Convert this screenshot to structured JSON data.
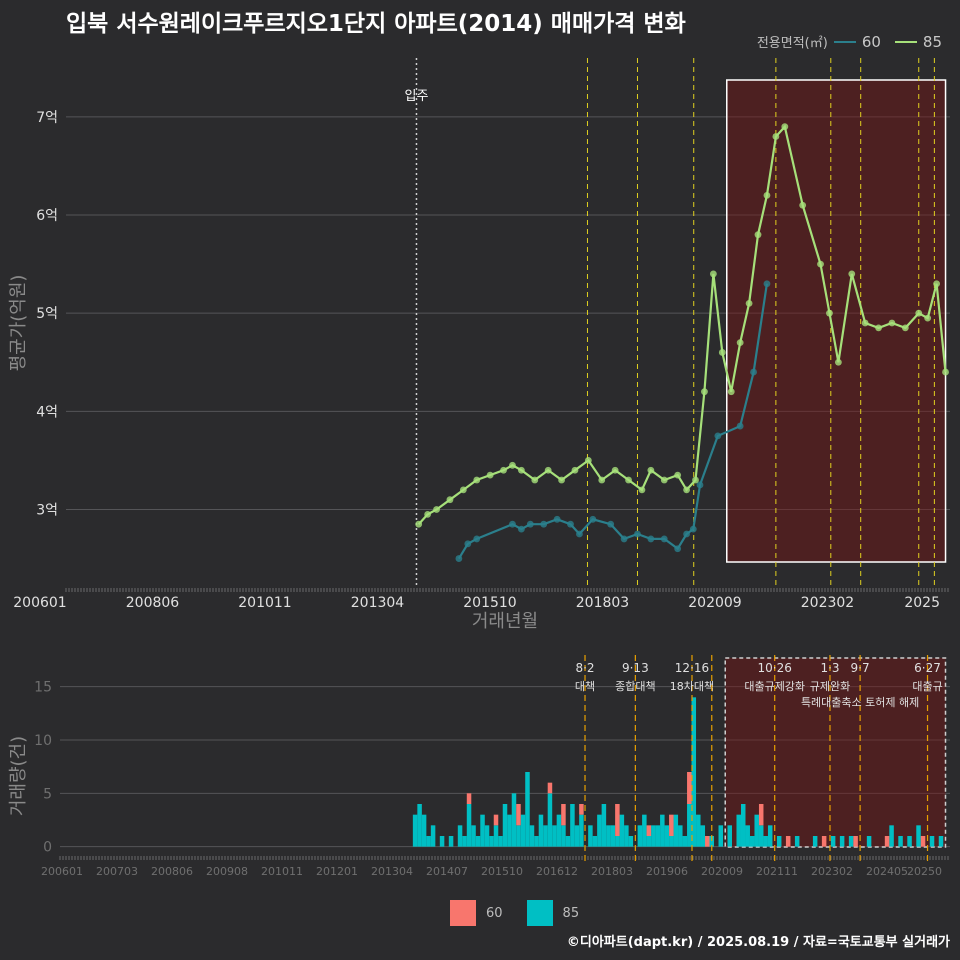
{
  "title": "입북 서수원레이크푸르지오1단지 아파트(2014) 매매가격 변화",
  "footer": "©디아파트(dapt.kr) / 2025.08.19 / 자료=국토교통부 실거래가",
  "legend_top": {
    "title": "전용면적(㎡)",
    "items": [
      {
        "label": "60",
        "color": "#2b7f8c"
      },
      {
        "label": "85",
        "color": "#a6e07a"
      }
    ]
  },
  "legend_bottom": {
    "items": [
      {
        "label": "60",
        "color": "#f8766d"
      },
      {
        "label": "85",
        "color": "#00bfc4"
      }
    ]
  },
  "chart_data": [
    {
      "type": "line",
      "title": "입북 서수원레이크푸르지오1단지 아파트(2014) 매매가격 변화",
      "xlabel": "거래년월",
      "ylabel": "평균가(억원)",
      "x_ticks": [
        "200601",
        "200806",
        "201011",
        "201304",
        "201510",
        "201803",
        "202009",
        "202302",
        "2025"
      ],
      "y_ticks": [
        "3억",
        "4억",
        "5억",
        "6억",
        "7억"
      ],
      "y_tick_values": [
        3,
        4,
        5,
        6,
        7
      ],
      "ylim": [
        2.2,
        7.6
      ],
      "xlim": [
        2005.9,
        2025.7
      ],
      "event_lines": [
        {
          "label": "입주",
          "x": 2013.75
        },
        {
          "x": 2017.58
        },
        {
          "x": 2018.7
        },
        {
          "x": 2019.96
        },
        {
          "x": 2021.8
        },
        {
          "x": 2023.03
        },
        {
          "x": 2023.7
        },
        {
          "x": 2025.0
        },
        {
          "x": 2025.35
        }
      ],
      "highlight": {
        "x_from": 2020.7,
        "x_to": 2025.6
      },
      "series": [
        {
          "name": "60",
          "color": "#2b7f8c",
          "x": [
            2014.7,
            2014.9,
            2015.1,
            2015.9,
            2016.1,
            2016.3,
            2016.6,
            2016.9,
            2017.2,
            2017.4,
            2017.7,
            2018.1,
            2018.4,
            2018.7,
            2019.0,
            2019.3,
            2019.6,
            2019.8,
            2019.95,
            2020.1,
            2020.5,
            2021.0,
            2021.3,
            2021.6
          ],
          "values": [
            2.5,
            2.65,
            2.7,
            2.85,
            2.8,
            2.85,
            2.85,
            2.9,
            2.85,
            2.75,
            2.9,
            2.85,
            2.7,
            2.75,
            2.7,
            2.7,
            2.6,
            2.75,
            2.8,
            3.25,
            3.75,
            3.85,
            4.4,
            5.3
          ]
        },
        {
          "name": "85",
          "color": "#a6e07a",
          "x": [
            2013.8,
            2014.0,
            2014.2,
            2014.5,
            2014.8,
            2015.1,
            2015.4,
            2015.7,
            2015.9,
            2016.1,
            2016.4,
            2016.7,
            2017.0,
            2017.3,
            2017.6,
            2017.9,
            2018.2,
            2018.5,
            2018.8,
            2019.0,
            2019.3,
            2019.6,
            2019.8,
            2020.0,
            2020.2,
            2020.4,
            2020.6,
            2020.8,
            2021.0,
            2021.2,
            2021.4,
            2021.6,
            2021.8,
            2022.0,
            2022.4,
            2022.8,
            2023.0,
            2023.2,
            2023.5,
            2023.8,
            2024.1,
            2024.4,
            2024.7,
            2025.0,
            2025.2,
            2025.4,
            2025.6
          ],
          "values": [
            2.85,
            2.95,
            3.0,
            3.1,
            3.2,
            3.3,
            3.35,
            3.4,
            3.45,
            3.4,
            3.3,
            3.4,
            3.3,
            3.4,
            3.5,
            3.3,
            3.4,
            3.3,
            3.2,
            3.4,
            3.3,
            3.35,
            3.2,
            3.3,
            4.2,
            5.4,
            4.6,
            4.2,
            4.7,
            5.1,
            5.8,
            6.2,
            6.8,
            6.9,
            6.1,
            5.5,
            5.0,
            4.5,
            5.4,
            4.9,
            4.85,
            4.9,
            4.85,
            5.0,
            4.95,
            5.3,
            4.4
          ]
        }
      ]
    },
    {
      "type": "bar",
      "xlabel": "",
      "ylabel": "거래량(건)",
      "x_ticks": [
        "200601",
        "200703",
        "200806",
        "200908",
        "201011",
        "201201",
        "201304",
        "201407",
        "201510",
        "201612",
        "201803",
        "201906",
        "202009",
        "202111",
        "202302",
        "202405",
        "20250"
      ],
      "y_ticks": [
        "0",
        "5",
        "10",
        "15"
      ],
      "y_tick_values": [
        0,
        5,
        10,
        15
      ],
      "ylim": [
        -0.5,
        17.5
      ],
      "xlim": [
        2005.9,
        2025.7
      ],
      "highlight": {
        "x_from": 2020.7,
        "x_to": 2025.6
      },
      "event_lines": [
        {
          "x": 2017.58,
          "date": "8·2",
          "label": "대책"
        },
        {
          "x": 2018.7,
          "date": "9·13",
          "label": "종합대책"
        },
        {
          "x": 2019.96,
          "date": "12·16",
          "label": "18차대책"
        },
        {
          "x": 2020.4,
          "date": "",
          "label": ""
        },
        {
          "x": 2021.8,
          "date": "10·26",
          "label": "대출규제강화"
        },
        {
          "x": 2023.03,
          "date": "1·3",
          "label": "규제완화"
        },
        {
          "x": 2023.7,
          "date": "9·7",
          "label": "특례대출축소 토허제 해제"
        },
        {
          "x": 2025.2,
          "date": "6·27",
          "label": "대출규"
        }
      ],
      "series": [
        {
          "name": "60",
          "color": "#f8766d",
          "x": [
            2015.0,
            2015.6,
            2016.1,
            2016.8,
            2017.1,
            2017.5,
            2018.3,
            2019.0,
            2019.5,
            2019.9,
            2020.3,
            2021.5,
            2022.1,
            2022.9,
            2023.6,
            2024.3,
            2025.1
          ],
          "values": [
            1,
            1,
            2,
            1,
            2,
            1,
            3,
            1,
            2,
            3,
            1,
            2,
            1,
            1,
            1,
            1,
            1
          ]
        },
        {
          "name": "85",
          "color": "#00bfc4",
          "x": [
            2013.8,
            2013.9,
            2014.0,
            2014.1,
            2014.2,
            2014.4,
            2014.6,
            2014.8,
            2014.9,
            2015.0,
            2015.1,
            2015.2,
            2015.3,
            2015.4,
            2015.5,
            2015.6,
            2015.7,
            2015.8,
            2015.9,
            2016.0,
            2016.1,
            2016.2,
            2016.3,
            2016.4,
            2016.5,
            2016.6,
            2016.7,
            2016.8,
            2016.9,
            2017.0,
            2017.1,
            2017.2,
            2017.3,
            2017.4,
            2017.5,
            2017.7,
            2017.8,
            2017.9,
            2018.0,
            2018.1,
            2018.2,
            2018.3,
            2018.4,
            2018.5,
            2018.6,
            2018.8,
            2018.9,
            2019.0,
            2019.1,
            2019.2,
            2019.3,
            2019.4,
            2019.5,
            2019.6,
            2019.7,
            2019.8,
            2019.9,
            2020.0,
            2020.1,
            2020.2,
            2020.4,
            2020.6,
            2020.8,
            2021.0,
            2021.1,
            2021.2,
            2021.3,
            2021.4,
            2021.5,
            2021.6,
            2021.7,
            2021.9,
            2022.3,
            2022.7,
            2023.1,
            2023.3,
            2023.5,
            2023.9,
            2024.4,
            2024.6,
            2024.8,
            2025.0,
            2025.3,
            2025.5
          ],
          "values": [
            3,
            4,
            3,
            1,
            2,
            1,
            1,
            2,
            1,
            4,
            2,
            1,
            3,
            2,
            1,
            2,
            1,
            4,
            3,
            5,
            2,
            3,
            7,
            2,
            1,
            3,
            2,
            5,
            2,
            3,
            2,
            1,
            4,
            2,
            3,
            2,
            1,
            3,
            4,
            2,
            2,
            1,
            3,
            2,
            1,
            2,
            3,
            1,
            2,
            2,
            3,
            2,
            1,
            3,
            2,
            1,
            4,
            14,
            3,
            2,
            1,
            2,
            2,
            3,
            4,
            2,
            1,
            3,
            2,
            1,
            2,
            1,
            1,
            1,
            1,
            1,
            1,
            1,
            2,
            1,
            1,
            2,
            1,
            1
          ]
        }
      ]
    }
  ]
}
